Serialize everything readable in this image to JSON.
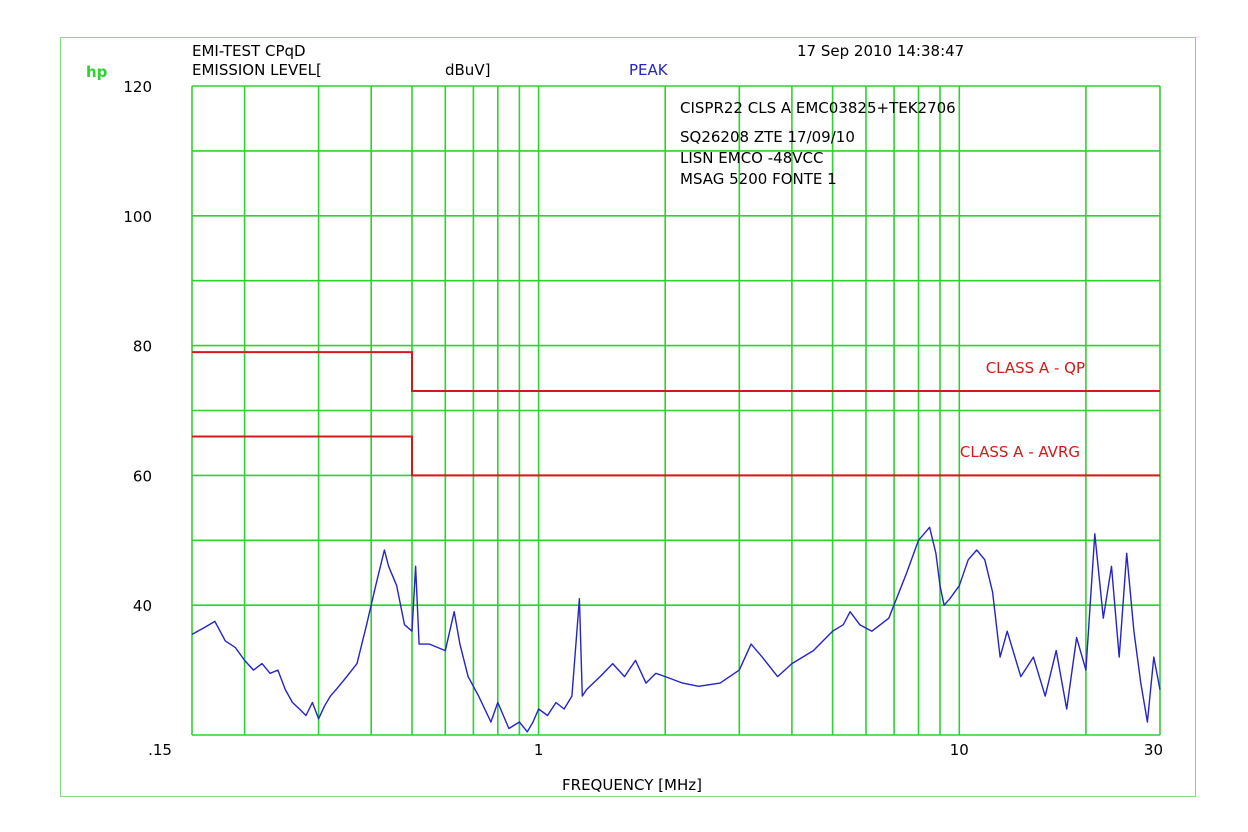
{
  "header": {
    "logo": "hp",
    "test_name": "EMI-TEST CPqD",
    "level_label": "EMISSION LEVEL[",
    "unit_label": "dBuV]",
    "detector": "PEAK",
    "timestamp": "17 Sep 2010  14:38:47"
  },
  "notes": [
    "CISPR22 CLS A EMC03825+TEK2706",
    "SQ26208 ZTE 17/09/10",
    "LISN EMCO -48VCC",
    "MSAG 5200  FONTE 1"
  ],
  "colors": {
    "grid": "#2fd12f",
    "frame": "#7fdc7f",
    "limit": "#d81818",
    "trace": "#2424c8"
  },
  "chart_data": {
    "type": "line",
    "xscale": "log",
    "xlabel": "FREQUENCY [MHz]",
    "ylabel": "EMISSION LEVEL[dBuV]",
    "xlim": [
      0.15,
      30
    ],
    "ylim": [
      20,
      120
    ],
    "x_ticks": [
      {
        "v": 0.15,
        "label": ".15"
      },
      {
        "v": 1,
        "label": "1"
      },
      {
        "v": 10,
        "label": "10"
      },
      {
        "v": 30,
        "label": "30"
      }
    ],
    "y_ticks": [
      {
        "v": 120,
        "label": "120"
      },
      {
        "v": 100,
        "label": "100"
      },
      {
        "v": 80,
        "label": "80"
      },
      {
        "v": 60,
        "label": "60"
      },
      {
        "v": 40,
        "label": "40"
      }
    ],
    "grid": true,
    "x_grid": [
      0.15,
      0.2,
      0.3,
      0.4,
      0.5,
      0.6,
      0.7,
      0.8,
      0.9,
      1,
      2,
      3,
      4,
      5,
      6,
      7,
      8,
      9,
      10,
      20,
      30
    ],
    "y_grid": [
      40,
      50,
      60,
      70,
      80,
      90,
      100,
      110,
      120
    ],
    "limits": [
      {
        "name": "CLASS A - QP",
        "points": [
          [
            0.15,
            79
          ],
          [
            0.5,
            79
          ],
          [
            0.5,
            73
          ],
          [
            30,
            73
          ]
        ]
      },
      {
        "name": "CLASS A - AVRG",
        "points": [
          [
            0.15,
            66
          ],
          [
            0.5,
            66
          ],
          [
            0.5,
            60
          ],
          [
            30,
            60
          ]
        ]
      }
    ],
    "series": [
      {
        "points": [
          [
            0.15,
            35.5
          ],
          [
            0.16,
            36.5
          ],
          [
            0.17,
            37.5
          ],
          [
            0.18,
            34.5
          ],
          [
            0.19,
            33.5
          ],
          [
            0.2,
            31.5
          ],
          [
            0.21,
            30
          ],
          [
            0.22,
            31
          ],
          [
            0.23,
            29.5
          ],
          [
            0.24,
            30
          ],
          [
            0.25,
            27
          ],
          [
            0.26,
            25
          ],
          [
            0.27,
            24
          ],
          [
            0.28,
            23
          ],
          [
            0.29,
            25
          ],
          [
            0.3,
            22.5
          ],
          [
            0.31,
            24.5
          ],
          [
            0.32,
            26
          ],
          [
            0.33,
            27
          ],
          [
            0.34,
            28
          ],
          [
            0.35,
            29
          ],
          [
            0.37,
            31
          ],
          [
            0.39,
            37
          ],
          [
            0.41,
            43
          ],
          [
            0.43,
            48.5
          ],
          [
            0.44,
            46
          ],
          [
            0.46,
            43
          ],
          [
            0.48,
            37
          ],
          [
            0.5,
            36
          ],
          [
            0.51,
            46
          ],
          [
            0.52,
            34
          ],
          [
            0.55,
            34
          ],
          [
            0.6,
            33
          ],
          [
            0.63,
            39
          ],
          [
            0.65,
            34
          ],
          [
            0.68,
            29
          ],
          [
            0.72,
            26
          ],
          [
            0.77,
            22
          ],
          [
            0.8,
            25
          ],
          [
            0.85,
            21
          ],
          [
            0.9,
            22
          ],
          [
            0.94,
            20.5
          ],
          [
            0.97,
            22
          ],
          [
            1.0,
            24
          ],
          [
            1.05,
            23
          ],
          [
            1.1,
            25
          ],
          [
            1.15,
            24
          ],
          [
            1.2,
            26
          ],
          [
            1.25,
            41
          ],
          [
            1.27,
            26
          ],
          [
            1.3,
            27
          ],
          [
            1.4,
            29
          ],
          [
            1.5,
            31
          ],
          [
            1.6,
            29
          ],
          [
            1.7,
            31.5
          ],
          [
            1.8,
            28
          ],
          [
            1.9,
            29.5
          ],
          [
            2.0,
            29
          ],
          [
            2.2,
            28
          ],
          [
            2.4,
            27.5
          ],
          [
            2.7,
            28
          ],
          [
            3.0,
            30
          ],
          [
            3.2,
            34
          ],
          [
            3.4,
            32
          ],
          [
            3.7,
            29
          ],
          [
            4.0,
            31
          ],
          [
            4.5,
            33
          ],
          [
            5.0,
            36
          ],
          [
            5.3,
            37
          ],
          [
            5.5,
            39
          ],
          [
            5.8,
            37
          ],
          [
            6.2,
            36
          ],
          [
            6.8,
            38
          ],
          [
            7.5,
            45
          ],
          [
            8.0,
            50
          ],
          [
            8.5,
            52
          ],
          [
            8.8,
            48
          ],
          [
            9.0,
            43
          ],
          [
            9.2,
            40
          ],
          [
            9.5,
            41
          ],
          [
            10.0,
            43
          ],
          [
            10.5,
            47
          ],
          [
            11.0,
            48.5
          ],
          [
            11.5,
            47
          ],
          [
            12.0,
            42
          ],
          [
            12.5,
            32
          ],
          [
            13,
            36
          ],
          [
            14,
            29
          ],
          [
            15,
            32
          ],
          [
            16,
            26
          ],
          [
            17,
            33
          ],
          [
            18,
            24
          ],
          [
            19,
            35
          ],
          [
            20,
            30
          ],
          [
            21,
            51
          ],
          [
            22,
            38
          ],
          [
            23,
            46
          ],
          [
            24,
            32
          ],
          [
            25,
            48
          ],
          [
            26,
            36
          ],
          [
            27,
            28
          ],
          [
            28,
            22
          ],
          [
            29,
            32
          ],
          [
            30,
            27
          ]
        ]
      }
    ]
  }
}
